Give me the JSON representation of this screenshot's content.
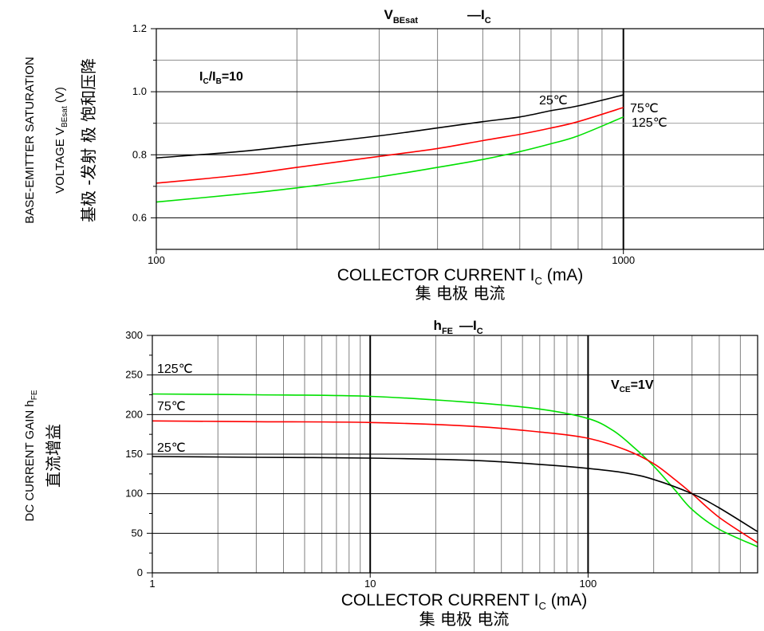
{
  "chart_data": [
    {
      "type": "line",
      "title": "V",
      "title_sub": "BEsat",
      "title_suffix": "—I",
      "title_suffix_sub": "C",
      "x_scale": "log",
      "xlim": [
        100,
        2000
      ],
      "ylim": [
        0.5,
        1.2
      ],
      "x_ticks": [
        100,
        1000
      ],
      "x_tick_labels": [
        "100",
        "1000"
      ],
      "y_ticks": [
        0.6,
        0.8,
        1.0,
        1.2
      ],
      "y_tick_labels": [
        "0.6",
        "0.8",
        "1.0",
        "1.2"
      ],
      "xlabel": "COLLECTOR CURRENT I",
      "xlabel_sub": "C",
      "xlabel_suffix": " (mA)",
      "xlabel_cn": "集 电极 电流",
      "ylabel_line1": "BASE-EMITTER SATURATION",
      "ylabel_line2": "VOLTAGE V",
      "ylabel_line2_sub": "BEsat",
      "ylabel_line2_suffix": " (V)",
      "ylabel_cn": "基极 -发射 极 饱和压降",
      "condition": "I",
      "condition_sub1": "C",
      "condition_mid": "/I",
      "condition_sub2": "B",
      "condition_suffix": "=10",
      "grid": true,
      "series": [
        {
          "name": "25℃",
          "color": "#000000",
          "x": [
            100,
            150,
            200,
            300,
            400,
            500,
            600,
            700,
            800,
            1000
          ],
          "y": [
            0.79,
            0.81,
            0.83,
            0.86,
            0.885,
            0.905,
            0.92,
            0.94,
            0.955,
            0.99
          ]
        },
        {
          "name": "75℃",
          "color": "#ff0000",
          "x": [
            100,
            150,
            200,
            300,
            400,
            500,
            600,
            700,
            800,
            1000
          ],
          "y": [
            0.71,
            0.735,
            0.76,
            0.795,
            0.82,
            0.845,
            0.865,
            0.885,
            0.905,
            0.95
          ]
        },
        {
          "name": "125℃",
          "color": "#00e000",
          "x": [
            100,
            150,
            200,
            300,
            400,
            500,
            600,
            700,
            800,
            1000
          ],
          "y": [
            0.65,
            0.675,
            0.695,
            0.73,
            0.76,
            0.785,
            0.81,
            0.835,
            0.86,
            0.92
          ]
        }
      ],
      "annotations": [
        "25℃",
        "75℃",
        "125℃"
      ]
    },
    {
      "type": "line",
      "title": "h",
      "title_sub": "FE",
      "title_suffix": "—I",
      "title_suffix_sub": "C",
      "x_scale": "log",
      "xlim": [
        1,
        600
      ],
      "ylim": [
        0,
        300
      ],
      "x_ticks": [
        1,
        10,
        100
      ],
      "x_tick_labels": [
        "1",
        "10",
        "100"
      ],
      "y_ticks": [
        0,
        50,
        100,
        150,
        200,
        250,
        300
      ],
      "y_tick_labels": [
        "0",
        "50",
        "100",
        "150",
        "200",
        "250",
        "300"
      ],
      "xlabel": "COLLECTOR CURRENT I",
      "xlabel_sub": "C",
      "xlabel_suffix": " (mA)",
      "xlabel_cn": "集 电极 电流",
      "ylabel_line1": "DC CURRENT GAIN h",
      "ylabel_line1_sub": "FE",
      "ylabel_cn": "直流增益",
      "condition": "V",
      "condition_sub1": "CE",
      "condition_suffix": "=1V",
      "grid": true,
      "series": [
        {
          "name": "125℃",
          "color": "#00e000",
          "x": [
            1,
            3,
            10,
            30,
            60,
            100,
            130,
            160,
            200,
            250,
            300,
            400,
            600
          ],
          "y": [
            226,
            225,
            223,
            215,
            207,
            195,
            180,
            160,
            135,
            105,
            80,
            55,
            33
          ]
        },
        {
          "name": "75℃",
          "color": "#ff0000",
          "x": [
            1,
            3,
            10,
            30,
            60,
            100,
            150,
            200,
            250,
            300,
            400,
            600
          ],
          "y": [
            192,
            191,
            190,
            185,
            178,
            170,
            155,
            138,
            118,
            100,
            70,
            38
          ]
        },
        {
          "name": "25℃",
          "color": "#000000",
          "x": [
            1,
            3,
            10,
            30,
            60,
            100,
            150,
            200,
            300,
            400,
            600
          ],
          "y": [
            147,
            146,
            145,
            142,
            137,
            132,
            126,
            118,
            100,
            82,
            52
          ]
        }
      ],
      "annotations": [
        "125℃",
        "75℃",
        "25℃"
      ]
    }
  ]
}
